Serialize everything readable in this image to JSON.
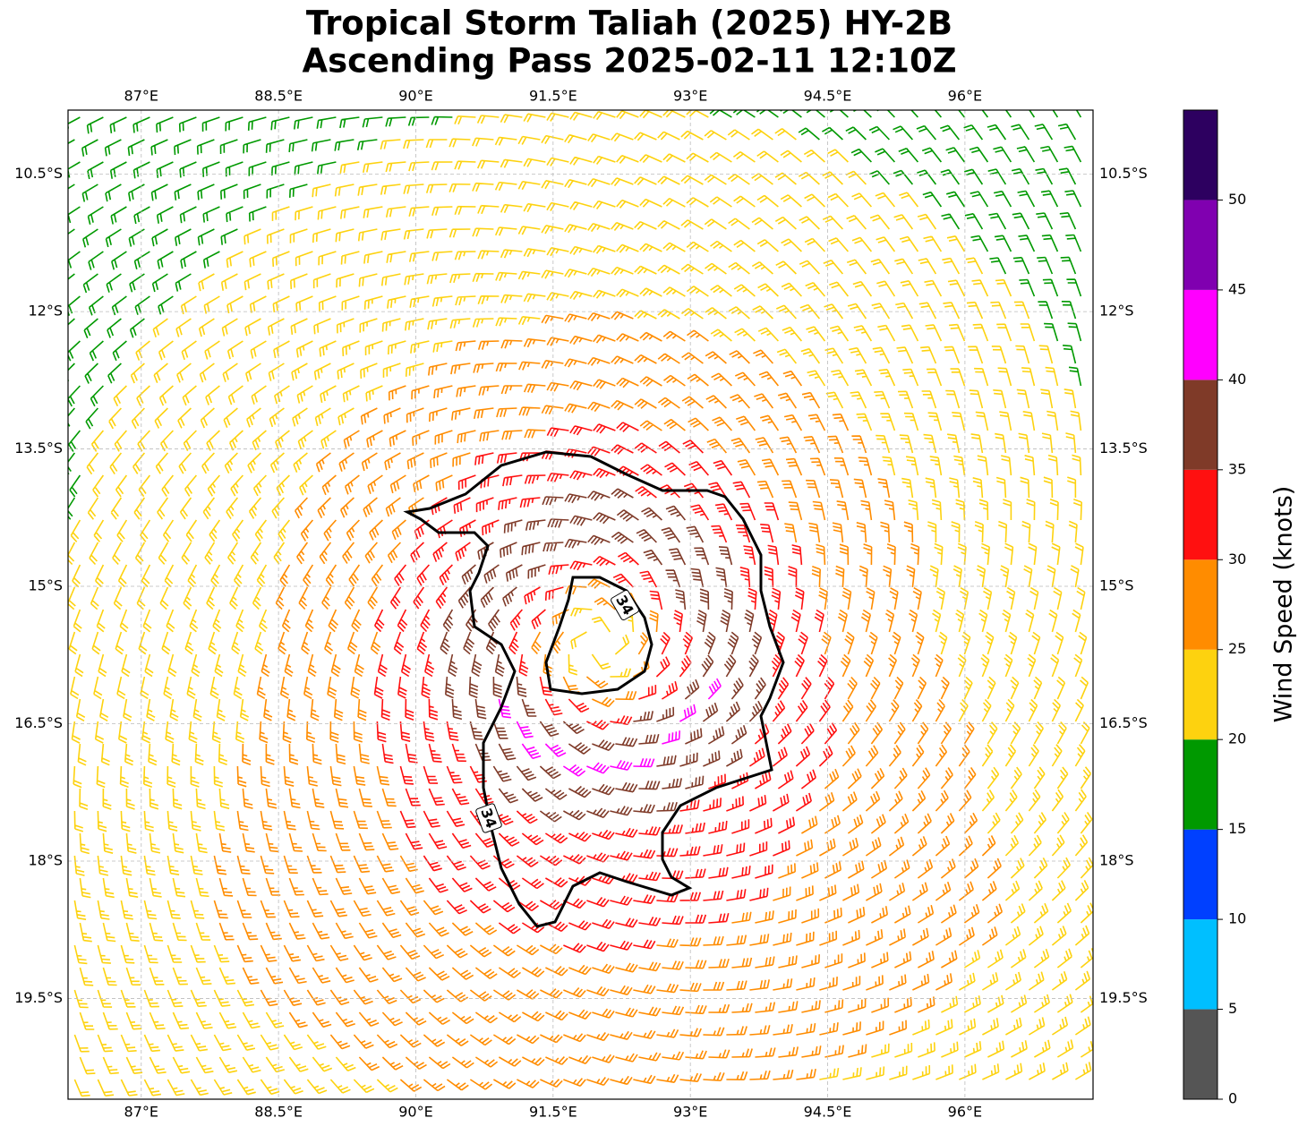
{
  "chart_data": {
    "type": "wind-barb-map",
    "title": "Tropical Storm Taliah (2025) HY-2B",
    "subtitle": "Ascending Pass 2025-02-11 12:10Z",
    "xlim": [
      86.2,
      97.4
    ],
    "ylim": [
      -20.6,
      -9.8
    ],
    "xticks": [
      {
        "value": 87,
        "label": "87°E"
      },
      {
        "value": 88.5,
        "label": "88.5°E"
      },
      {
        "value": 90,
        "label": "90°E"
      },
      {
        "value": 91.5,
        "label": "91.5°E"
      },
      {
        "value": 93,
        "label": "93°E"
      },
      {
        "value": 94.5,
        "label": "94.5°E"
      },
      {
        "value": 96,
        "label": "96°E"
      }
    ],
    "yticks": [
      {
        "value": -10.5,
        "label": "10.5°S"
      },
      {
        "value": -12,
        "label": "12°S"
      },
      {
        "value": -13.5,
        "label": "13.5°S"
      },
      {
        "value": -15,
        "label": "15°S"
      },
      {
        "value": -16.5,
        "label": "16.5°S"
      },
      {
        "value": -18,
        "label": "18°S"
      },
      {
        "value": -19.5,
        "label": "19.5°S"
      }
    ],
    "grid": true,
    "contour_level": 34,
    "colorbar": {
      "label": "Wind Speed (knots)",
      "bins": [
        0,
        5,
        10,
        15,
        20,
        25,
        30,
        35,
        40,
        45,
        50,
        55
      ],
      "colors": [
        "#555555",
        "#00bfff",
        "#0040ff",
        "#009900",
        "#fdd20f",
        "#ff8c00",
        "#ff1010",
        "#7f3a28",
        "#ff00ff",
        "#8000b0",
        "#2d0060"
      ],
      "ticks": [
        0,
        5,
        10,
        15,
        20,
        25,
        30,
        35,
        40,
        45,
        50
      ]
    }
  }
}
